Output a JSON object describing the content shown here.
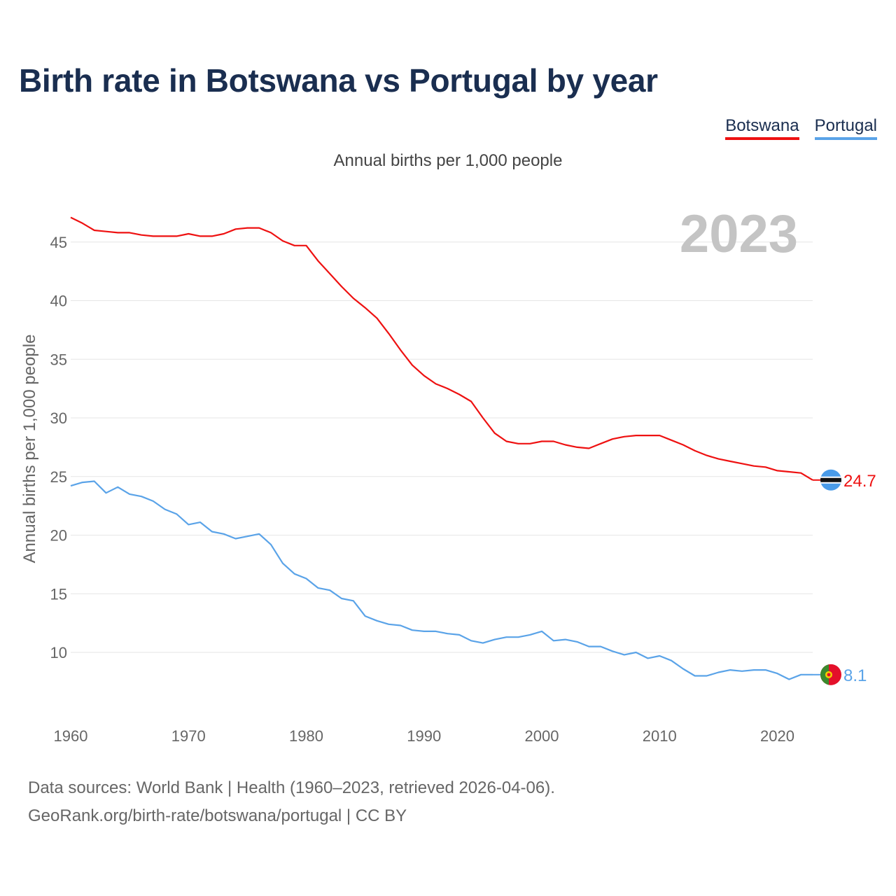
{
  "title": "Birth rate in Botswana vs Portugal by year",
  "subtitle": "Annual births per 1,000 people",
  "footer": {
    "line1": "Data sources: World Bank | Health (1960–2023, retrieved 2026-04-06).",
    "line2": "GeoRank.org/birth-rate/botswana/portugal | CC BY"
  },
  "colors": {
    "botswana": "#ee1111",
    "portugal": "#5aa3e8",
    "grid": "#e6e6e6"
  },
  "chart_data": {
    "type": "line",
    "title": "Birth rate in Botswana vs Portugal by year",
    "subtitle": "Annual births per 1,000 people",
    "xlabel": "",
    "ylabel": "Annual births per 1,000 people",
    "xlim": [
      1960,
      2023
    ],
    "ylim": [
      5,
      48
    ],
    "x_ticks": [
      1960,
      1970,
      1980,
      1990,
      2000,
      2010,
      2020
    ],
    "y_ticks": [
      10,
      15,
      20,
      25,
      30,
      35,
      40,
      45
    ],
    "grid": true,
    "legend": "top-right",
    "annotation_year": "2023",
    "x": [
      1960,
      1961,
      1962,
      1963,
      1964,
      1965,
      1966,
      1967,
      1968,
      1969,
      1970,
      1971,
      1972,
      1973,
      1974,
      1975,
      1976,
      1977,
      1978,
      1979,
      1980,
      1981,
      1982,
      1983,
      1984,
      1985,
      1986,
      1987,
      1988,
      1989,
      1990,
      1991,
      1992,
      1993,
      1994,
      1995,
      1996,
      1997,
      1998,
      1999,
      2000,
      2001,
      2002,
      2003,
      2004,
      2005,
      2006,
      2007,
      2008,
      2009,
      2010,
      2011,
      2012,
      2013,
      2014,
      2015,
      2016,
      2017,
      2018,
      2019,
      2020,
      2021,
      2022,
      2023
    ],
    "series": [
      {
        "name": "Botswana",
        "end_label": "24.7",
        "values": [
          47.1,
          46.6,
          46.0,
          45.9,
          45.8,
          45.8,
          45.6,
          45.5,
          45.5,
          45.5,
          45.7,
          45.5,
          45.5,
          45.7,
          46.1,
          46.2,
          46.2,
          45.8,
          45.1,
          44.7,
          44.7,
          43.4,
          42.3,
          41.2,
          40.2,
          39.4,
          38.5,
          37.2,
          35.8,
          34.5,
          33.6,
          32.9,
          32.5,
          32.0,
          31.4,
          30.0,
          28.7,
          28.0,
          27.8,
          27.8,
          28.0,
          28.0,
          27.7,
          27.5,
          27.4,
          27.8,
          28.2,
          28.4,
          28.5,
          28.5,
          28.5,
          28.1,
          27.7,
          27.2,
          26.8,
          26.5,
          26.3,
          26.1,
          25.9,
          25.8,
          25.5,
          25.4,
          25.3,
          24.7
        ]
      },
      {
        "name": "Portugal",
        "end_label": "8.1",
        "values": [
          24.2,
          24.5,
          24.6,
          23.6,
          24.1,
          23.5,
          23.3,
          22.9,
          22.2,
          21.8,
          20.9,
          21.1,
          20.3,
          20.1,
          19.7,
          19.9,
          20.1,
          19.2,
          17.6,
          16.7,
          16.3,
          15.5,
          15.3,
          14.6,
          14.4,
          13.1,
          12.7,
          12.4,
          12.3,
          11.9,
          11.8,
          11.8,
          11.6,
          11.5,
          11.0,
          10.8,
          11.1,
          11.3,
          11.3,
          11.5,
          11.8,
          11.0,
          11.1,
          10.9,
          10.5,
          10.5,
          10.1,
          9.8,
          10.0,
          9.5,
          9.7,
          9.3,
          8.6,
          8.0,
          8.0,
          8.3,
          8.5,
          8.4,
          8.5,
          8.5,
          8.2,
          7.7,
          8.1,
          8.1
        ]
      }
    ]
  }
}
